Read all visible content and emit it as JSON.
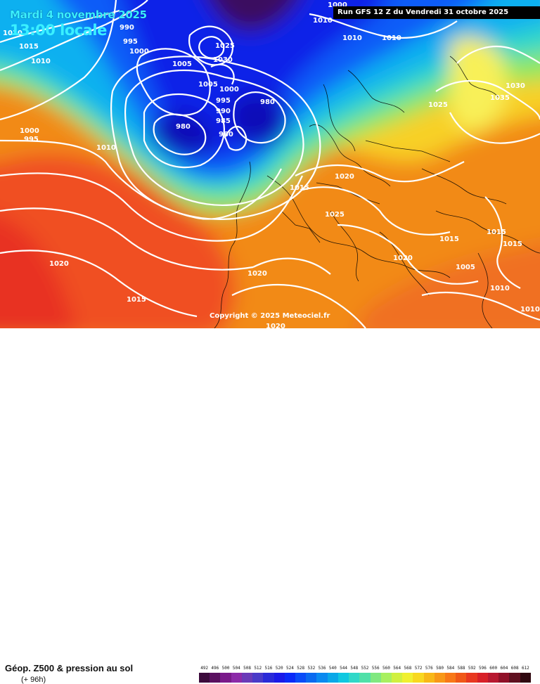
{
  "map": {
    "date_title": "Mardi 4 novembre 2025",
    "time_title": "13:00 locale",
    "run_info": "Run GFS 12 Z du Vendredi 31 octobre 2025",
    "copyright": "Copyright © 2025 Meteociel.fr",
    "isobar_labels": [
      "1000",
      "1010",
      "1010",
      "1010",
      "1010",
      "990",
      "995",
      "1000",
      "1015",
      "1010",
      "1000",
      "995",
      "1010",
      "1025",
      "1030",
      "1005",
      "1000",
      "995",
      "990",
      "985",
      "980",
      "980",
      "980",
      "1025",
      "1035",
      "1030",
      "1020",
      "1015",
      "1025",
      "1020",
      "1015",
      "1015",
      "1015",
      "1020",
      "1020",
      "1015",
      "1020",
      "1010",
      "1010",
      "1005"
    ],
    "colors": {
      "low": "#0a0a8a",
      "high": "#e8202a"
    }
  },
  "legend": {
    "title": "Géop. Z500 & pression au sol",
    "subtitle": "(+ 96h)",
    "scale_values": [
      "492",
      "496",
      "500",
      "504",
      "508",
      "512",
      "516",
      "520",
      "524",
      "528",
      "532",
      "536",
      "540",
      "544",
      "548",
      "552",
      "556",
      "560",
      "564",
      "568",
      "572",
      "576",
      "580",
      "584",
      "588",
      "592",
      "596",
      "600",
      "604",
      "608",
      "612"
    ],
    "scale_colors": [
      "#3c0a3c",
      "#5a1060",
      "#7a1a8a",
      "#8c2aa8",
      "#6a3ab8",
      "#4a3ac8",
      "#2a2ad8",
      "#1a1ae8",
      "#0a2af8",
      "#0a4cf8",
      "#0a6af0",
      "#0a8af0",
      "#0aa8e8",
      "#10c8e0",
      "#30d8c8",
      "#50e0a8",
      "#80e880",
      "#a8f060",
      "#d0f040",
      "#f0f030",
      "#f8d820",
      "#f8b818",
      "#f89818",
      "#f87818",
      "#f05818",
      "#e83820",
      "#d82028",
      "#b81830",
      "#901028",
      "#601020",
      "#300810"
    ]
  }
}
